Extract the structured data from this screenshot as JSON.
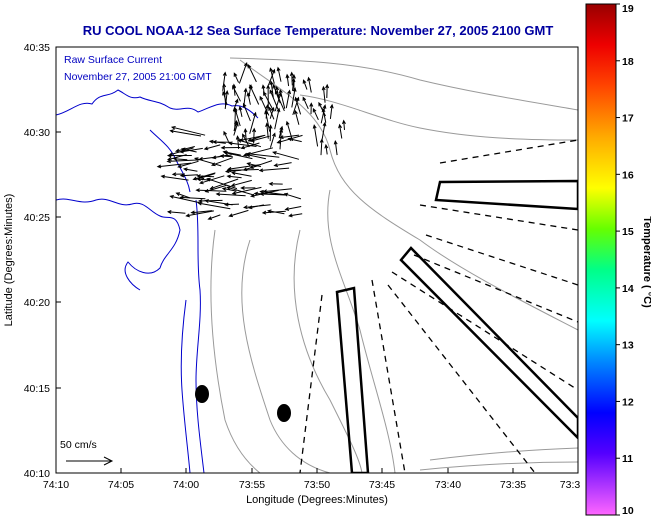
{
  "title": "RU COOL  NOAA-12  Sea Surface Temperature:  November 27, 2005 2100 GMT",
  "annotation": {
    "line1": "Raw Surface Current",
    "line2": "November 27, 2005 21:00 GMT"
  },
  "axes": {
    "xlabel": "Longitude (Degrees:Minutes)",
    "ylabel": "Latitude (Degrees:Minutes)",
    "xticks": [
      "74:10",
      "74:05",
      "74:00",
      "73:55",
      "73:50",
      "73:45",
      "73:40",
      "73:35",
      "73:3"
    ],
    "yticks": [
      "40:35",
      "40:30",
      "40:25",
      "40:20",
      "40:15",
      "40:10"
    ]
  },
  "scale": {
    "label": "50 cm/s"
  },
  "colorbar": {
    "label": "Temperature ( °C)",
    "ticks": [
      "19",
      "18",
      "17",
      "16",
      "15",
      "14",
      "13",
      "12",
      "11",
      "10"
    ],
    "min": 10,
    "max": 19
  },
  "colors": {
    "title": "#0000a0",
    "annotation": "#0000c0",
    "coastline": "#0000cc",
    "bathymetry": "#9a9a9a"
  }
}
